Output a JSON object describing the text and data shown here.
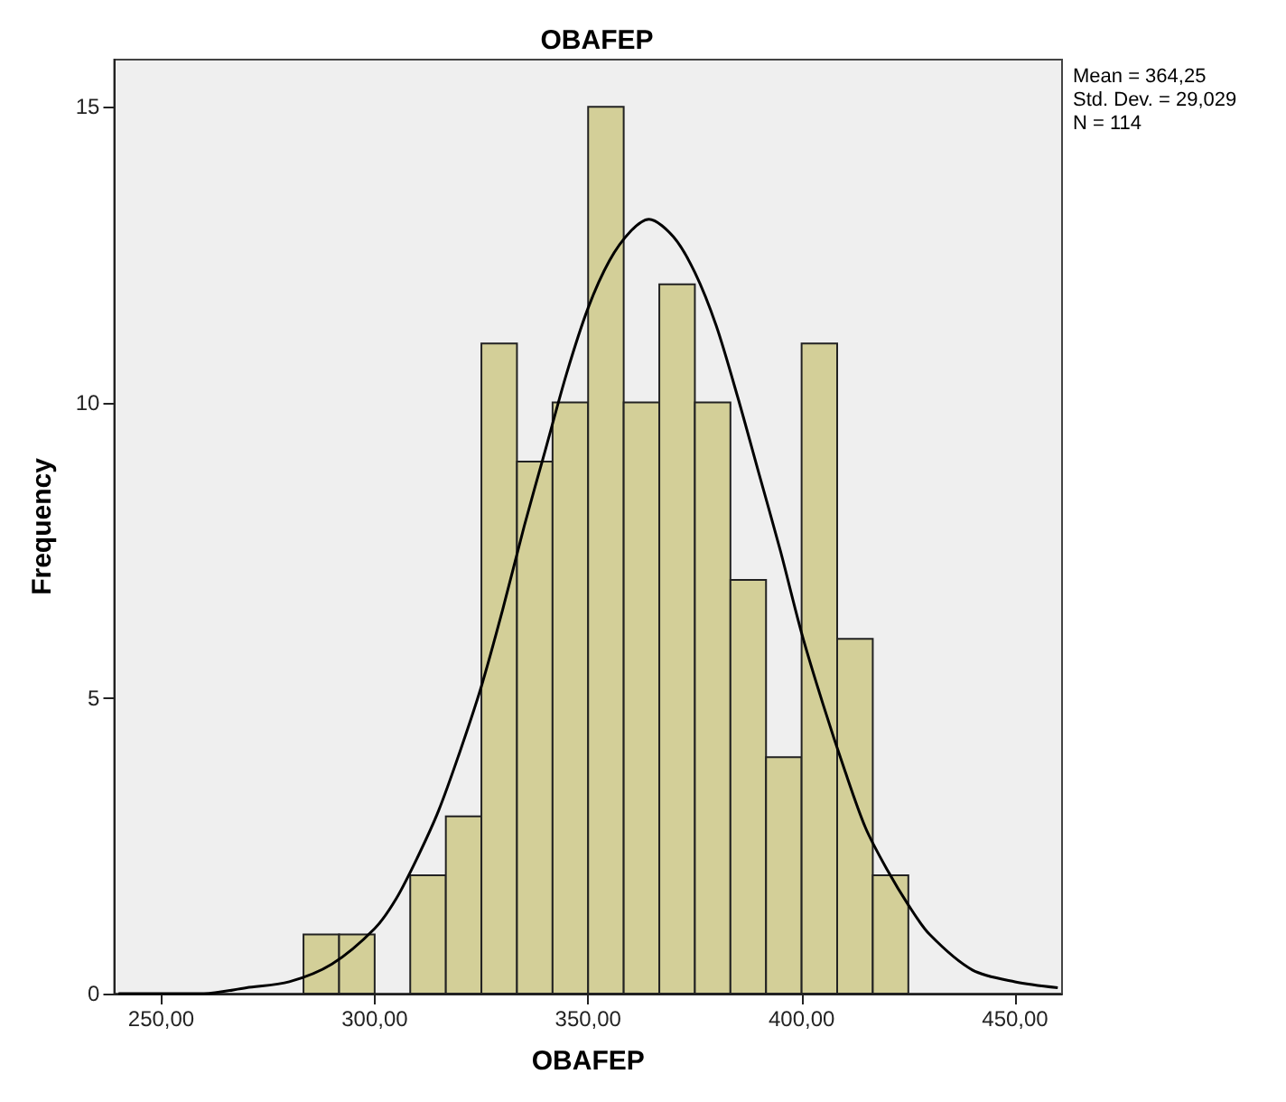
{
  "chart_data": {
    "type": "histogram",
    "title": "OBAFEP",
    "xlabel": "OBAFEP",
    "ylabel": "Frequency",
    "xlim": [
      239,
      461
    ],
    "xticks": [
      {
        "value": 250,
        "label": "250,00"
      },
      {
        "value": 300,
        "label": "300,00"
      },
      {
        "value": 350,
        "label": "350,00"
      },
      {
        "value": 400,
        "label": "400,00"
      },
      {
        "value": 450,
        "label": "450,00"
      }
    ],
    "ylim": [
      0,
      15.8
    ],
    "yticks": [
      0,
      5,
      10,
      15
    ],
    "grid": false,
    "annotations": [
      "Mean = 364,25",
      "Std. Dev. = 29,029",
      "N = 114"
    ],
    "series": [
      {
        "type": "histogram",
        "color": "#d3cf98",
        "bins": [
          283.33,
          291.67,
          300,
          308.33,
          316.67,
          325,
          333.33,
          341.67,
          350,
          358.33,
          366.67,
          375,
          383.33,
          391.67,
          400,
          408.33,
          416.67,
          425
        ],
        "values": [
          1,
          1,
          0,
          2,
          3,
          11,
          9,
          10,
          15,
          10,
          12,
          10,
          7,
          4,
          11,
          6,
          2
        ]
      },
      {
        "type": "line",
        "color": "#000000",
        "marker": "none",
        "x": [
          240,
          250,
          260,
          270,
          280,
          290,
          300,
          305,
          310,
          315,
          320,
          325,
          330,
          335,
          340,
          345,
          350,
          355,
          360,
          364.25,
          370,
          375,
          380,
          385,
          390,
          395,
          400,
          405,
          410,
          415,
          420,
          425,
          430,
          440,
          450,
          460
        ],
        "values": [
          0.0,
          0.0,
          0.0,
          0.1,
          0.2,
          0.5,
          1.1,
          1.6,
          2.3,
          3.1,
          4.1,
          5.2,
          6.5,
          7.9,
          9.2,
          10.5,
          11.6,
          12.4,
          12.9,
          13.1,
          12.8,
          12.2,
          11.3,
          10.1,
          8.8,
          7.5,
          6.1,
          4.9,
          3.8,
          2.8,
          2.1,
          1.5,
          1.0,
          0.4,
          0.2,
          0.1
        ]
      }
    ]
  }
}
